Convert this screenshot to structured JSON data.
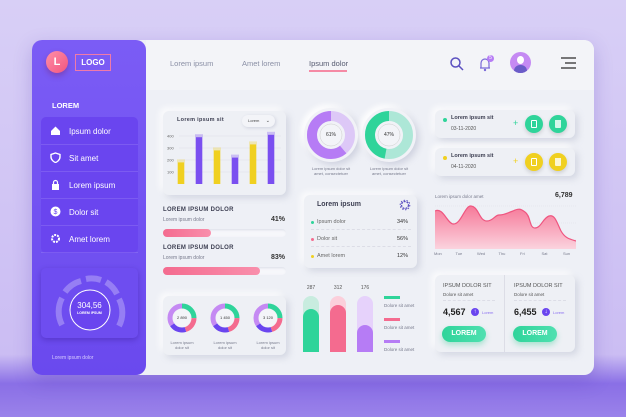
{
  "brand": {
    "initial": "L",
    "logo": "LOGO"
  },
  "sidebar": {
    "section": "LOREM",
    "items": [
      {
        "label": "Ipsum dolor",
        "icon": "home-icon"
      },
      {
        "label": "Sit amet",
        "icon": "shield-icon"
      },
      {
        "label": "Lorem ipsum",
        "icon": "lock-icon"
      },
      {
        "label": "Dolor sit",
        "icon": "dollar-icon"
      },
      {
        "label": "Amet lorem",
        "icon": "gear-icon"
      }
    ],
    "gauge": {
      "value": "304,56",
      "label": "LOREM IPSUM"
    },
    "footer": "Lorem ipsum dolor"
  },
  "topnav": {
    "tabs": [
      "Lorem ipsum",
      "Amet lorem",
      "Ipsum dolor"
    ],
    "active": 2,
    "notifications": "5"
  },
  "colors": {
    "accent": "#6d4ef0",
    "pink": "#f46b8f",
    "green": "#2fd49a",
    "yellow": "#f0d020",
    "purple": "#b67cf5"
  },
  "chart_data": [
    {
      "type": "bar",
      "title": "Lorem ipsum sit",
      "dropdown": "Lorem",
      "yticks": [
        "400",
        "300",
        "200",
        "100"
      ],
      "ylim": [
        0,
        450
      ],
      "values": [
        180,
        390,
        280,
        220,
        330,
        410
      ],
      "colors": [
        "#f0d020",
        "#7a4ff0",
        "#f0d020",
        "#7a4ff0",
        "#f0d020",
        "#7a4ff0"
      ]
    },
    {
      "type": "area",
      "title": "Lorem ipsum dolor amet",
      "total": "6,789",
      "categories": [
        "Mon",
        "Tue",
        "Wed",
        "Thu",
        "Fri",
        "Sat",
        "Sun"
      ]
    },
    {
      "type": "bar",
      "values": [
        287,
        312,
        176
      ],
      "labels": [
        "287",
        "312",
        "176"
      ],
      "legend": [
        "Dolore sit amet",
        "Dolore sit amet",
        "Dolore sit amet"
      ]
    }
  ],
  "rings": [
    {
      "value": "61%",
      "pct": 61,
      "color": "#b67cf5",
      "caption1": "Lorem ipsum dolor sit",
      "caption2": "amet, consectetuer"
    },
    {
      "value": "47%",
      "pct": 47,
      "color": "#2fd49a",
      "caption1": "Lorem ipsum dolor sit",
      "caption2": "amet, consectetuer"
    }
  ],
  "progress": [
    {
      "title": "LOREM IPSUM DOLOR",
      "sub": "Lorem ipsum dolor",
      "value": "41%",
      "pct": 41
    },
    {
      "title": "LOREM IPSUM DOLOR",
      "sub": "Lorem ipsum dolor",
      "value": "83%",
      "pct": 83
    }
  ],
  "donuts": [
    {
      "value": "2 890",
      "caption1": "Lorem ipsum",
      "caption2": "dolor sit"
    },
    {
      "value": "1 450",
      "caption1": "Lorem ipsum",
      "caption2": "dolor sit"
    },
    {
      "value": "3 120",
      "caption1": "Lorem ipsum",
      "caption2": "dolor sit"
    }
  ],
  "legend_card": {
    "title": "Lorem ipsum",
    "rows": [
      {
        "label": "Ipsum dolor",
        "value": "34%",
        "color": "#2fd49a"
      },
      {
        "label": "Dolor sit",
        "value": "56%",
        "color": "#f46b8f"
      },
      {
        "label": "Amet lorem",
        "value": "12%",
        "color": "#f0d020"
      }
    ]
  },
  "tasks": [
    {
      "title": "Lorem ipsum sit",
      "date": "03-11-2020",
      "color": "#2fd49a"
    },
    {
      "title": "Lorem ipsum sit",
      "date": "04-11-2020",
      "color": "#f0d020"
    }
  ],
  "stats": [
    {
      "title": "IPSUM DOLOR SIT",
      "sub": "Dolore sit amet",
      "value": "4,567",
      "tag": "Lorem",
      "button": "LOREM",
      "dir": "up"
    },
    {
      "title": "IPSUM DOLOR SIT",
      "sub": "Dolore sit amet",
      "value": "6,455",
      "tag": "Lorem",
      "button": "LOREM",
      "dir": "down"
    }
  ]
}
